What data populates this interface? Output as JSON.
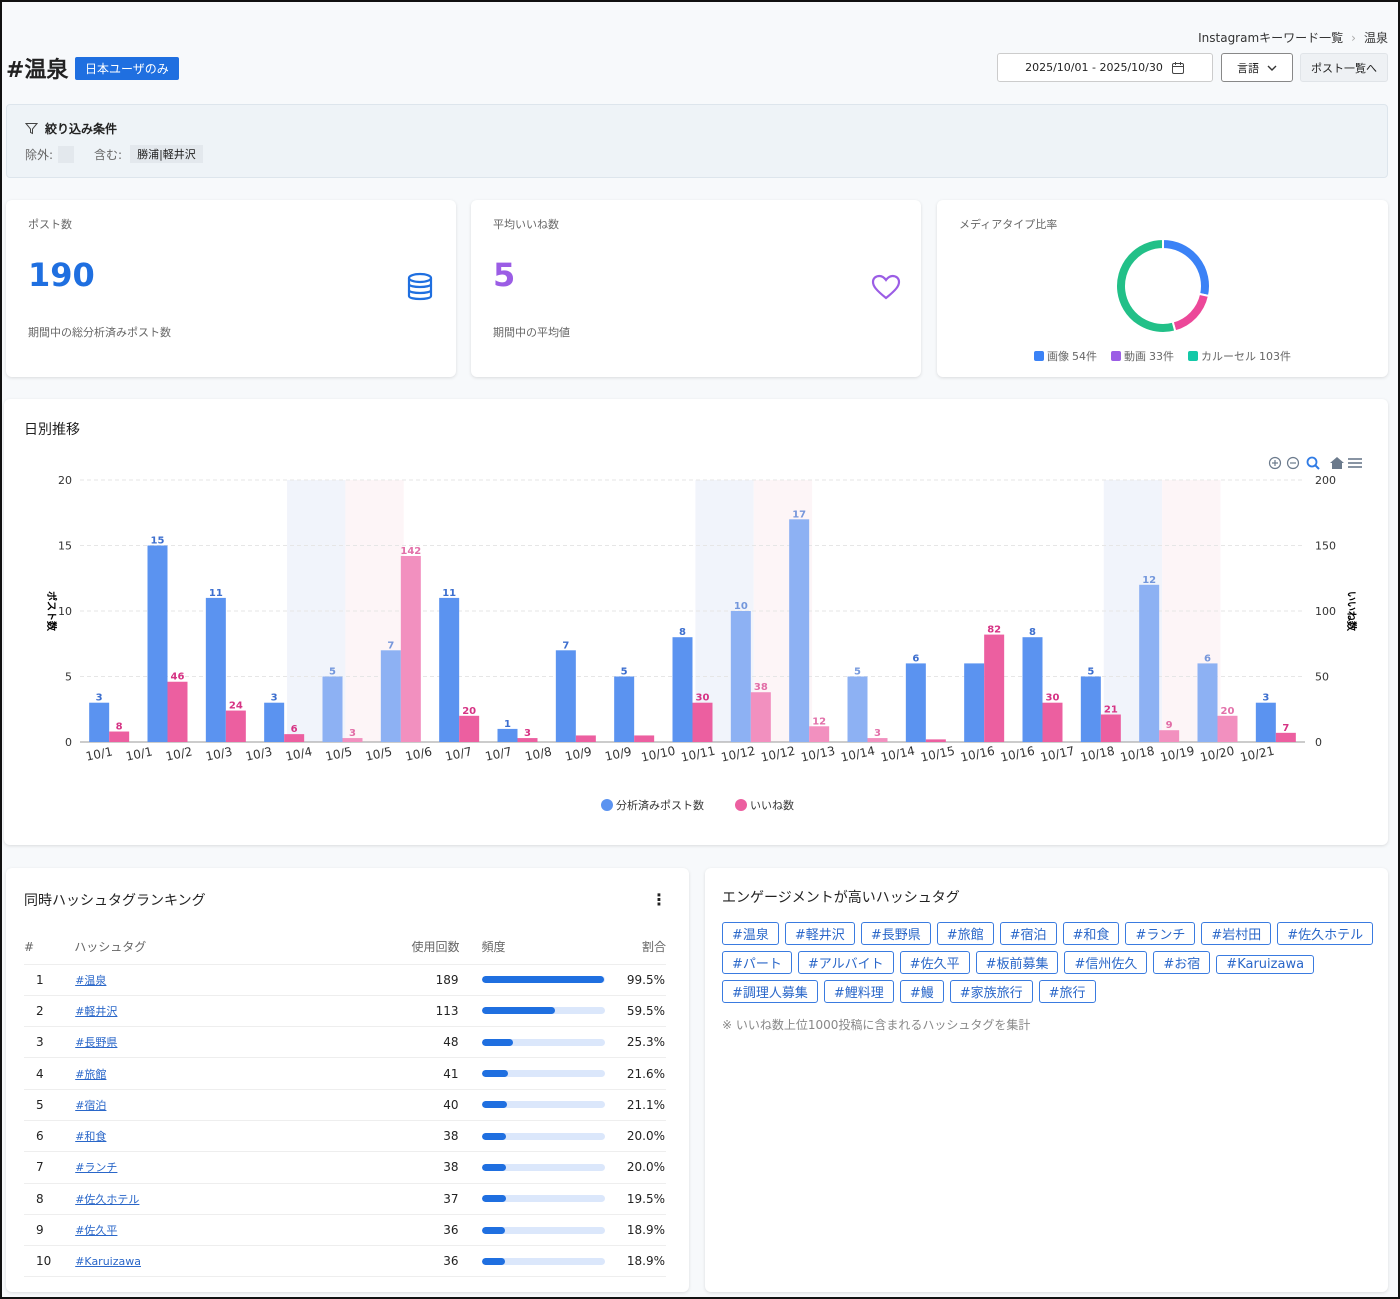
{
  "header": {
    "title": "#温泉",
    "badge": "日本ユーザのみ",
    "breadcrumb": [
      "Instagramキーワード一覧",
      "温泉"
    ],
    "date_range": "2025/10/01 - 2025/10/30",
    "language_button": "言語",
    "posts_button": "ポスト一覧へ"
  },
  "filter": {
    "title": "絞り込み条件",
    "exclude_label": "除外:",
    "include_label": "含む:",
    "include_value": "勝浦|軽井沢"
  },
  "stats": [
    {
      "label": "ポスト数",
      "value": 190,
      "note": "期間中の総分析済みポスト数"
    },
    {
      "label": "平均いいね数",
      "value": 5,
      "note": "期間中の平均値"
    }
  ],
  "chart_data": [
    {
      "type": "pie",
      "title": "メディアタイプ比率",
      "categories": [
        "画像",
        "動画",
        "カルーセル"
      ],
      "values": [
        54,
        33,
        103
      ],
      "value_labels": [
        "54件",
        "33件",
        "103件"
      ],
      "colors": [
        "#3b82f6",
        "#ec4899",
        "#22c088"
      ],
      "legend_colors": [
        "#3b82f6",
        "#9b5de5",
        "#14c9a8"
      ]
    },
    {
      "type": "bar",
      "title": "日別推移",
      "x_labels": [
        "10/1",
        "10/1",
        "10/2",
        "10/3",
        "10/3",
        "10/4",
        "10/5",
        "10/5",
        "10/6",
        "10/7",
        "10/7",
        "10/8",
        "10/9",
        "10/9",
        "10/10",
        "10/11",
        "10/12",
        "10/12",
        "10/13",
        "10/14",
        "10/14",
        "10/15",
        "10/16",
        "10/16",
        "10/17",
        "10/18",
        "10/18",
        "10/19",
        "10/20",
        "10/21"
      ],
      "series": [
        {
          "name": "分析済みポスト数",
          "color": "#5b93f0",
          "light_color": "#8db1f3",
          "label_color": "#3d6fcf",
          "values": [
            3,
            15,
            11,
            3,
            5,
            7,
            11,
            1,
            7,
            5,
            8,
            10,
            17,
            5,
            6,
            6,
            8,
            5,
            12,
            6,
            3
          ],
          "value_labels": [
            "3",
            "15",
            "11",
            "3",
            "5",
            "7",
            "11",
            "1",
            "7",
            "5",
            "8",
            "10",
            "17",
            "5",
            "6",
            null,
            "8",
            "5",
            "12",
            "6",
            "3"
          ]
        },
        {
          "name": "いいね数",
          "axis": "y2",
          "color": "#ec5fa0",
          "light_color": "#f290bf",
          "label_color": "#d63384",
          "values": [
            8,
            46,
            24,
            6,
            3,
            142,
            20,
            3,
            5,
            5,
            30,
            38,
            12,
            3,
            2,
            82,
            30,
            21,
            9,
            20,
            7
          ],
          "value_labels": [
            "8",
            "46",
            "24",
            "6",
            "3",
            "142",
            "20",
            "3",
            null,
            null,
            "30",
            "38",
            "12",
            "3",
            null,
            "82",
            "30",
            "21",
            "9",
            "20",
            "7"
          ]
        }
      ],
      "ylim": [
        0,
        20
      ],
      "yticks": [
        0,
        5,
        10,
        15,
        20
      ],
      "ylabel": "ポスト数",
      "y2lim": [
        0,
        200
      ],
      "y2ticks": [
        0,
        50,
        100,
        150,
        200
      ],
      "y2label": "いいね数",
      "grid": true,
      "highlights": [
        {
          "group": 4,
          "color": "#f1f4fb"
        },
        {
          "group": 5,
          "color": "#fdf5f7"
        },
        {
          "group": 11,
          "color": "#f1f4fb"
        },
        {
          "group": 12,
          "color": "#fdf5f7"
        },
        {
          "group": 18,
          "color": "#f1f4fb"
        },
        {
          "group": 19,
          "color": "#fdf5f7"
        }
      ],
      "light_groups": [
        4,
        5,
        11,
        12,
        13,
        18,
        19
      ]
    }
  ],
  "ranking": {
    "title": "同時ハッシュタグランキング",
    "headers": [
      "#",
      "ハッシュタグ",
      "使用回数",
      "頻度",
      "割合"
    ],
    "rows": [
      {
        "rank": 1,
        "tag": "#温泉",
        "count": 189,
        "share": 99.5,
        "share_label": "99.5%"
      },
      {
        "rank": 2,
        "tag": "#軽井沢",
        "count": 113,
        "share": 59.5,
        "share_label": "59.5%"
      },
      {
        "rank": 3,
        "tag": "#長野県",
        "count": 48,
        "share": 25.3,
        "share_label": "25.3%"
      },
      {
        "rank": 4,
        "tag": "#旅館",
        "count": 41,
        "share": 21.6,
        "share_label": "21.6%"
      },
      {
        "rank": 5,
        "tag": "#宿泊",
        "count": 40,
        "share": 21.1,
        "share_label": "21.1%"
      },
      {
        "rank": 6,
        "tag": "#和食",
        "count": 38,
        "share": 20.0,
        "share_label": "20.0%"
      },
      {
        "rank": 7,
        "tag": "#ランチ",
        "count": 38,
        "share": 20.0,
        "share_label": "20.0%"
      },
      {
        "rank": 8,
        "tag": "#佐久ホテル",
        "count": 37,
        "share": 19.5,
        "share_label": "19.5%"
      },
      {
        "rank": 9,
        "tag": "#佐久平",
        "count": 36,
        "share": 18.9,
        "share_label": "18.9%"
      },
      {
        "rank": 10,
        "tag": "#Karuizawa",
        "count": 36,
        "share": 18.9,
        "share_label": "18.9%"
      }
    ]
  },
  "engagement": {
    "title": "エンゲージメントが高いハッシュタグ",
    "tags": [
      "#温泉",
      "#軽井沢",
      "#長野県",
      "#旅館",
      "#宿泊",
      "#和食",
      "#ランチ",
      "#岩村田",
      "#佐久ホテル",
      "#パート",
      "#アルバイト",
      "#佐久平",
      "#板前募集",
      "#信州佐久",
      "#お宿",
      "#Karuizawa",
      "#調理人募集",
      "#鯉料理",
      "#鰻",
      "#家族旅行",
      "#旅行"
    ],
    "note": "※ いいね数上位1000投稿に含まれるハッシュタグを集計"
  }
}
